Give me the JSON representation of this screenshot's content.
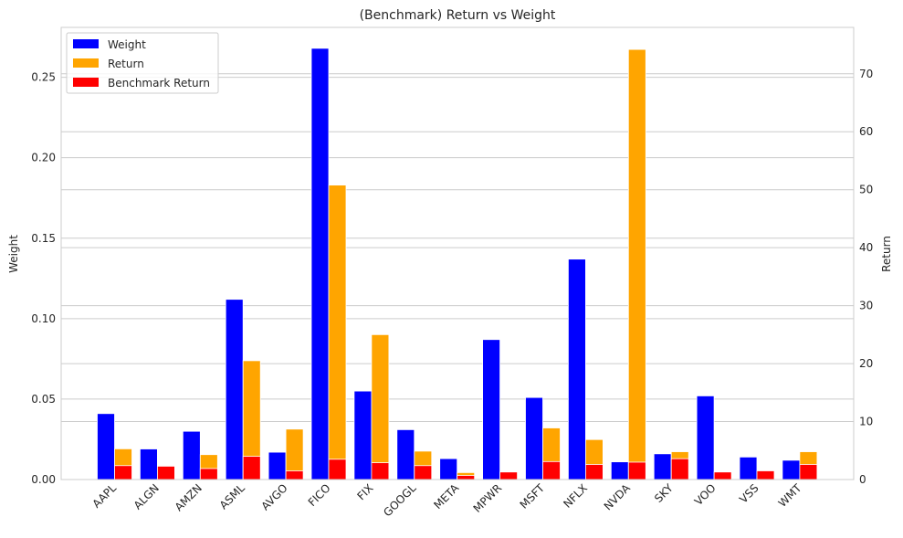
{
  "chart_data": {
    "type": "bar",
    "title": "(Benchmark) Return vs Weight",
    "xlabel": "",
    "ylabel": "Weight",
    "y2label": "Return",
    "ylim": [
      0,
      0.281
    ],
    "y2lim": [
      0,
      78.0
    ],
    "yticks": [
      "0.00",
      "0.05",
      "0.10",
      "0.15",
      "0.20",
      "0.25"
    ],
    "y2ticks": [
      "0",
      "10",
      "20",
      "30",
      "40",
      "50",
      "60",
      "70"
    ],
    "grid": true,
    "legend_position": "top-left",
    "categories": [
      "AAPL",
      "ALGN",
      "AMZN",
      "ASML",
      "AVGO",
      "FICO",
      "FIX",
      "GOOGL",
      "META",
      "MPWR",
      "MSFT",
      "NFLX",
      "NVDA",
      "SKY",
      "VOO",
      "VSS",
      "WMT"
    ],
    "series": [
      {
        "name": "Weight",
        "axis": "left",
        "color": "#0000ff",
        "values": [
          0.041,
          0.019,
          0.03,
          0.112,
          0.017,
          0.268,
          0.055,
          0.031,
          0.013,
          0.087,
          0.051,
          0.137,
          0.011,
          0.016,
          0.052,
          0.014,
          0.012
        ]
      },
      {
        "name": "Return",
        "axis": "right",
        "color": "#ffa500",
        "values": [
          5.3,
          0.0,
          4.3,
          20.5,
          8.7,
          50.8,
          25.0,
          4.9,
          1.2,
          0.0,
          8.9,
          6.9,
          74.2,
          4.8,
          0.0,
          0.0,
          4.8
        ]
      },
      {
        "name": "Benchmark Return",
        "axis": "right",
        "color": "#ff0000",
        "values": [
          2.4,
          2.3,
          1.9,
          4.0,
          1.5,
          3.5,
          2.9,
          2.4,
          0.7,
          1.3,
          3.1,
          2.6,
          3.0,
          3.6,
          1.3,
          1.5,
          2.6
        ]
      }
    ]
  }
}
